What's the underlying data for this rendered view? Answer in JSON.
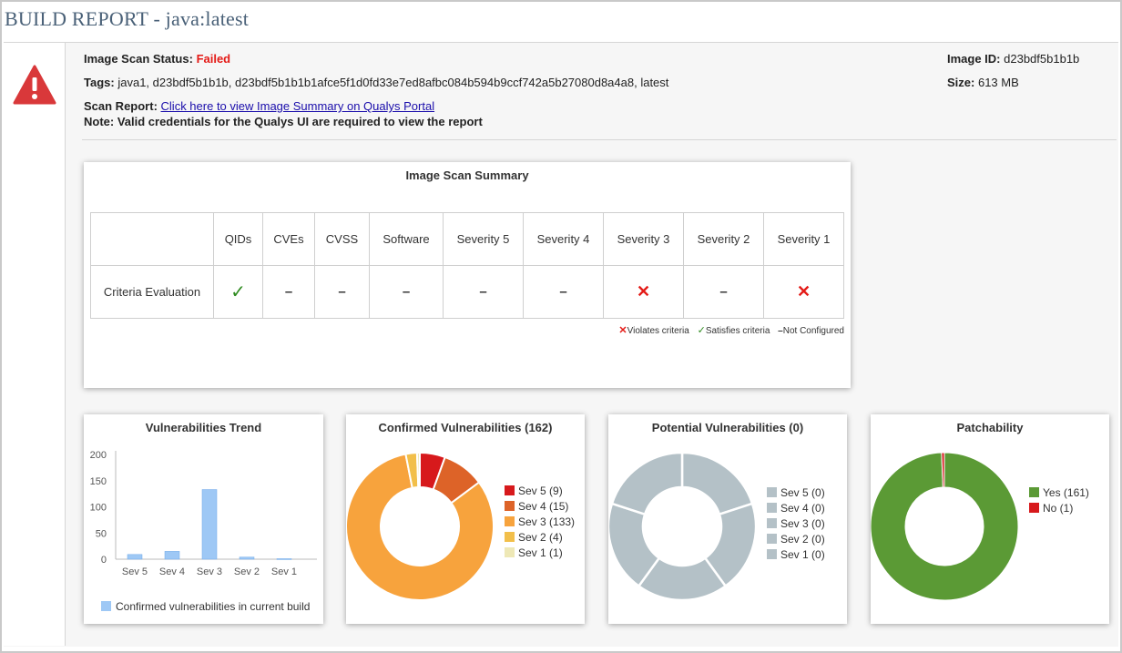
{
  "page": {
    "title": "BUILD REPORT - java:latest"
  },
  "scan": {
    "status_label": "Image Scan Status:",
    "status_value": "Failed",
    "tags_label": "Tags:",
    "tags_value": "java1, d23bdf5b1b1b, d23bdf5b1b1b1afce5f1d0fd33e7ed8afbc084b594b9ccf742a5b27080d8a4a8, latest",
    "report_label": "Scan Report:",
    "report_link": "Click here to view Image Summary on Qualys Portal",
    "note": "Note: Valid credentials for the Qualys UI are required to view the report",
    "image_id_label": "Image ID:",
    "image_id_value": "d23bdf5b1b1b",
    "size_label": "Size:",
    "size_value": "613 MB"
  },
  "summary": {
    "title": "Image Scan Summary",
    "columns": [
      "QIDs",
      "CVEs",
      "CVSS",
      "Software",
      "Severity 5",
      "Severity 4",
      "Severity 3",
      "Severity 2",
      "Severity 1"
    ],
    "row_label": "Criteria Evaluation",
    "row_values": [
      "check",
      "dash",
      "dash",
      "dash",
      "dash",
      "dash",
      "cross",
      "dash",
      "cross"
    ],
    "legend": {
      "violates": "Violates criteria",
      "satisfies": "Satisfies criteria",
      "not_configured": "Not Configured"
    }
  },
  "colors": {
    "sev5": "#d7191c",
    "sev4": "#dd6328",
    "sev3": "#f7a33d",
    "sev2": "#f2bf4a",
    "sev1": "#eee8b6",
    "potential": "#b4c1c7",
    "yes": "#5b9a35",
    "no": "#d7191c",
    "trend_bar": "#9ec8f5",
    "trend_bar_stroke": "#6fa8e8"
  },
  "chart_data": [
    {
      "type": "bar",
      "title": "Vulnerabilities Trend",
      "categories": [
        "Sev 5",
        "Sev 4",
        "Sev 3",
        "Sev 2",
        "Sev 1"
      ],
      "series": [
        {
          "name": "Confirmed vulnerabilities in current build",
          "values": [
            9,
            15,
            133,
            4,
            1
          ]
        }
      ],
      "ylim": [
        0,
        200
      ],
      "yticks": [
        0,
        50,
        100,
        150,
        200
      ],
      "legend": "bottom"
    },
    {
      "type": "pie",
      "title": "Confirmed Vulnerabilities (162)",
      "labels": [
        "Sev 5 (9)",
        "Sev 4 (15)",
        "Sev 3 (133)",
        "Sev 2 (4)",
        "Sev 1 (1)"
      ],
      "values": [
        9,
        15,
        133,
        4,
        1
      ],
      "legend": "right"
    },
    {
      "type": "pie",
      "title": "Potential Vulnerabilities (0)",
      "labels": [
        "Sev 5 (0)",
        "Sev 4 (0)",
        "Sev 3 (0)",
        "Sev 2 (0)",
        "Sev 1 (0)"
      ],
      "values": [
        0,
        0,
        0,
        0,
        0
      ],
      "legend": "right"
    },
    {
      "type": "pie",
      "title": "Patchability",
      "labels": [
        "Yes (161)",
        "No (1)"
      ],
      "values": [
        161,
        1
      ],
      "legend": "right"
    }
  ]
}
